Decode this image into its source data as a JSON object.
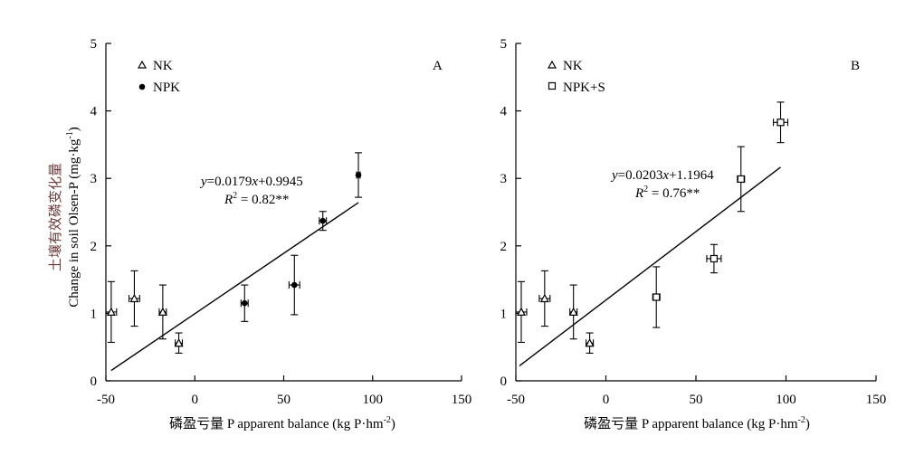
{
  "chart_data": [
    {
      "type": "scatter",
      "panel_label": "A",
      "xlabel": "磷盈亏量 P apparent balance (kg P·hm",
      "xlabel_sup": "-2",
      "xlabel_tail": ")",
      "ylabel_cn": "土壤有效磷变化量",
      "ylabel": "Change in soil Olsen-P (mg·kg",
      "ylabel_sup": "-1",
      "ylabel_tail": ")",
      "xlim": [
        -50,
        150
      ],
      "ylim": [
        0,
        5
      ],
      "xticks": [
        -50,
        0,
        50,
        100,
        150
      ],
      "yticks": [
        0,
        1,
        2,
        3,
        4,
        5
      ],
      "grid": false,
      "legend_position": "top-left",
      "series": [
        {
          "name": "NK",
          "marker": "triangle-open",
          "points": [
            {
              "x": -47,
              "y": 1.02,
              "xerr": 3,
              "yerr": 0.45
            },
            {
              "x": -34,
              "y": 1.22,
              "xerr": 3,
              "yerr": 0.41
            },
            {
              "x": -18,
              "y": 1.02,
              "xerr": 2,
              "yerr": 0.4
            },
            {
              "x": -9,
              "y": 0.56,
              "xerr": 2,
              "yerr": 0.15
            }
          ]
        },
        {
          "name": "NPK",
          "marker": "circle-filled",
          "points": [
            {
              "x": 28,
              "y": 1.15,
              "xerr": 2,
              "yerr": 0.27
            },
            {
              "x": 56,
              "y": 1.42,
              "xerr": 3,
              "yerr": 0.44
            },
            {
              "x": 72,
              "y": 2.37,
              "xerr": 2,
              "yerr": 0.14
            },
            {
              "x": 92,
              "y": 3.05,
              "xerr": 1,
              "yerr": 0.33
            }
          ]
        }
      ],
      "fit": {
        "slope": 0.0179,
        "intercept": 0.9945,
        "x_range": [
          -47,
          92
        ]
      },
      "equation": {
        "y_prefix": "y",
        "eq_part1": "=0.0179",
        "x_var": "x",
        "eq_part2": "+0.9945",
        "r_label": "R",
        "r_sup": "2",
        "r_value": " = 0.82**"
      }
    },
    {
      "type": "scatter",
      "panel_label": "B",
      "xlabel": "磷盈亏量 P apparent balance (kg P·hm",
      "xlabel_sup": "-2",
      "xlabel_tail": ")",
      "xlim": [
        -50,
        150
      ],
      "ylim": [
        0,
        5
      ],
      "xticks": [
        -50,
        0,
        50,
        100,
        150
      ],
      "yticks": [
        0,
        1,
        2,
        3,
        4,
        5
      ],
      "grid": false,
      "legend_position": "top-left",
      "series": [
        {
          "name": "NK",
          "marker": "triangle-open",
          "points": [
            {
              "x": -47,
              "y": 1.02,
              "xerr": 3,
              "yerr": 0.45
            },
            {
              "x": -34,
              "y": 1.22,
              "xerr": 3,
              "yerr": 0.41
            },
            {
              "x": -18,
              "y": 1.02,
              "xerr": 2,
              "yerr": 0.4
            },
            {
              "x": -9,
              "y": 0.56,
              "xerr": 2,
              "yerr": 0.15
            }
          ]
        },
        {
          "name": "NPK+S",
          "marker": "square-open",
          "points": [
            {
              "x": 28,
              "y": 1.24,
              "xerr": 2,
              "yerr": 0.45
            },
            {
              "x": 60,
              "y": 1.81,
              "xerr": 4,
              "yerr": 0.21
            },
            {
              "x": 75,
              "y": 2.99,
              "xerr": 2,
              "yerr": 0.48
            },
            {
              "x": 97,
              "y": 3.83,
              "xerr": 4,
              "yerr": 0.3
            }
          ]
        }
      ],
      "fit": {
        "slope": 0.0203,
        "intercept": 1.1964,
        "x_range": [
          -48,
          97
        ]
      },
      "equation": {
        "y_prefix": "y",
        "eq_part1": "=0.0203",
        "x_var": "x",
        "eq_part2": "+1.1964",
        "r_label": "R",
        "r_sup": "2",
        "r_value": " = 0.76**"
      }
    }
  ]
}
